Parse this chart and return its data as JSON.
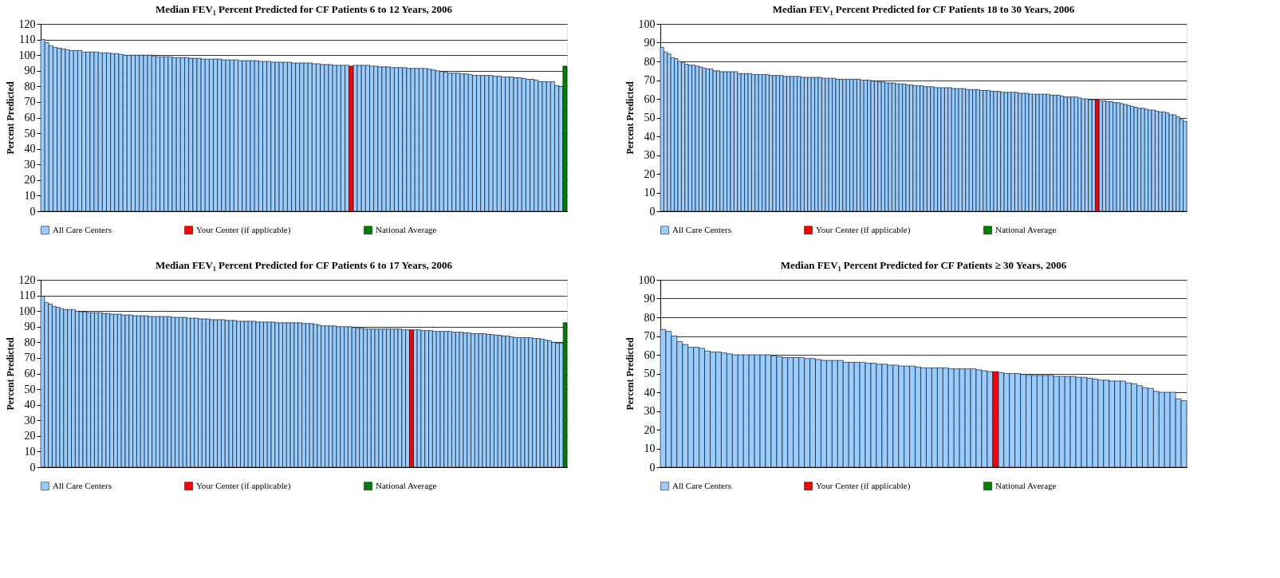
{
  "chart_data": [
    {
      "type": "bar",
      "title": "Median FEV₁ Percent Predicted for CF Patients 6 to 12 Years, 2006",
      "ylabel": "Percent Predicted",
      "ylim": [
        0,
        120
      ],
      "yticks": [
        0,
        10,
        20,
        30,
        40,
        50,
        60,
        70,
        80,
        90,
        100,
        110,
        120
      ],
      "grid": "y",
      "legend": "bottom",
      "tick_labels": "y",
      "categories": [
        null,
        null,
        null,
        null,
        null,
        null,
        null,
        null,
        null,
        null,
        null,
        null,
        null,
        null,
        null,
        null,
        null,
        null,
        null,
        null,
        null,
        null,
        null,
        null,
        null,
        null,
        null,
        null,
        null,
        null,
        null,
        null,
        null,
        null,
        null,
        null,
        null,
        null,
        null,
        null,
        null,
        null,
        null,
        null,
        null,
        null,
        null,
        null,
        null,
        null,
        null,
        null,
        null,
        null,
        null,
        null,
        null,
        null,
        null,
        null,
        null,
        null,
        null,
        null,
        null,
        null,
        null,
        null,
        null,
        null,
        null,
        null,
        null,
        null,
        null,
        null,
        null,
        null,
        null,
        null,
        null,
        null,
        null,
        null,
        null,
        null,
        null,
        null,
        null,
        null,
        null,
        null,
        null,
        null,
        null,
        null,
        null,
        null,
        null,
        null,
        null,
        null,
        null,
        null,
        null,
        null,
        null,
        null,
        null,
        null,
        null,
        null,
        null,
        null,
        null,
        null,
        null,
        null,
        null,
        null,
        null,
        null,
        null,
        null,
        null,
        null,
        null,
        null
      ],
      "series": [
        {
          "name": "All Care Centers",
          "color": "#99ccff",
          "values": [
            110,
            108,
            106,
            105,
            104.5,
            104,
            103.5,
            103,
            103,
            103,
            102,
            102,
            102,
            102,
            101.5,
            101.5,
            101.5,
            101,
            101,
            100.5,
            100,
            100,
            100,
            100,
            100,
            100,
            100,
            99.5,
            99,
            99,
            99,
            99,
            98.5,
            98.5,
            98.5,
            98.5,
            98,
            98,
            98,
            97.5,
            97.5,
            97.5,
            97.5,
            97.5,
            97,
            97,
            97,
            97,
            96.5,
            96.5,
            96.5,
            96.5,
            96.5,
            96,
            96,
            96,
            95.5,
            95.5,
            95.5,
            95.5,
            95.5,
            95,
            95,
            95,
            95,
            95,
            94.5,
            94.5,
            94,
            94,
            94,
            93.5,
            93.5,
            93.5,
            93.5,
            null,
            93.5,
            93.5,
            93.5,
            93.5,
            93,
            93,
            92.5,
            92.5,
            92.5,
            92,
            92,
            92,
            92,
            91.5,
            91.5,
            91.5,
            91.5,
            91.5,
            91,
            90.5,
            90,
            89.5,
            89,
            88.5,
            88.5,
            88.5,
            88,
            88,
            87.5,
            87,
            87,
            87,
            87,
            87,
            86.5,
            86.5,
            86,
            86,
            86,
            85.5,
            85.5,
            85,
            84.5,
            84.5,
            84,
            83,
            83,
            83,
            83,
            80.5,
            80,
            null
          ]
        },
        {
          "name": "Your Center (if applicable)",
          "color": "#ff0000",
          "values": [
            null,
            null,
            null,
            null,
            null,
            null,
            null,
            null,
            null,
            null,
            null,
            null,
            null,
            null,
            null,
            null,
            null,
            null,
            null,
            null,
            null,
            null,
            null,
            null,
            null,
            null,
            null,
            null,
            null,
            null,
            null,
            null,
            null,
            null,
            null,
            null,
            null,
            null,
            null,
            null,
            null,
            null,
            null,
            null,
            null,
            null,
            null,
            null,
            null,
            null,
            null,
            null,
            null,
            null,
            null,
            null,
            null,
            null,
            null,
            null,
            null,
            null,
            null,
            null,
            null,
            null,
            null,
            null,
            null,
            null,
            null,
            null,
            null,
            null,
            null,
            93,
            null,
            null,
            null,
            null,
            null,
            null,
            null,
            null,
            null,
            null,
            null,
            null,
            null,
            null,
            null,
            null,
            null,
            null,
            null,
            null,
            null,
            null,
            null,
            null,
            null,
            null,
            null,
            null,
            null,
            null,
            null,
            null,
            null,
            null,
            null,
            null,
            null,
            null,
            null,
            null,
            null,
            null,
            null,
            null,
            null,
            null,
            null,
            null,
            null,
            null,
            null,
            null
          ]
        },
        {
          "name": "National Average",
          "color": "#008000",
          "values": [
            null,
            null,
            null,
            null,
            null,
            null,
            null,
            null,
            null,
            null,
            null,
            null,
            null,
            null,
            null,
            null,
            null,
            null,
            null,
            null,
            null,
            null,
            null,
            null,
            null,
            null,
            null,
            null,
            null,
            null,
            null,
            null,
            null,
            null,
            null,
            null,
            null,
            null,
            null,
            null,
            null,
            null,
            null,
            null,
            null,
            null,
            null,
            null,
            null,
            null,
            null,
            null,
            null,
            null,
            null,
            null,
            null,
            null,
            null,
            null,
            null,
            null,
            null,
            null,
            null,
            null,
            null,
            null,
            null,
            null,
            null,
            null,
            null,
            null,
            null,
            null,
            null,
            null,
            null,
            null,
            null,
            null,
            null,
            null,
            null,
            null,
            null,
            null,
            null,
            null,
            null,
            null,
            null,
            null,
            null,
            null,
            null,
            null,
            null,
            null,
            null,
            null,
            null,
            null,
            null,
            null,
            null,
            null,
            null,
            null,
            null,
            null,
            null,
            null,
            null,
            null,
            null,
            null,
            null,
            null,
            null,
            null,
            null,
            null,
            null,
            null,
            null,
            93
          ]
        }
      ]
    },
    {
      "type": "bar",
      "title": "Median FEV₁ Percent Predicted for CF Patients 18 to 30 Years, 2006",
      "ylabel": "Percent Predicted",
      "ylim": [
        0,
        100
      ],
      "yticks": [
        0,
        10,
        20,
        30,
        40,
        50,
        60,
        70,
        80,
        90,
        100
      ],
      "grid": "y",
      "legend": "bottom",
      "tick_labels": "y",
      "categories": [
        null,
        null,
        null,
        null,
        null,
        null,
        null,
        null,
        null,
        null,
        null,
        null,
        null,
        null,
        null,
        null,
        null,
        null,
        null,
        null,
        null,
        null,
        null,
        null,
        null,
        null,
        null,
        null,
        null,
        null,
        null,
        null,
        null,
        null,
        null,
        null,
        null,
        null,
        null,
        null,
        null,
        null,
        null,
        null,
        null,
        null,
        null,
        null,
        null,
        null,
        null,
        null,
        null,
        null,
        null,
        null,
        null,
        null,
        null,
        null,
        null,
        null,
        null,
        null,
        null,
        null,
        null,
        null,
        null,
        null,
        null,
        null,
        null,
        null,
        null,
        null,
        null,
        null,
        null,
        null,
        null,
        null,
        null,
        null,
        null,
        null,
        null,
        null,
        null,
        null,
        null,
        null,
        null,
        null,
        null,
        null,
        null,
        null,
        null,
        null,
        null,
        null,
        null,
        null,
        null,
        null,
        null,
        null,
        null,
        null,
        null,
        null,
        null,
        null,
        null,
        null,
        null,
        null,
        null,
        null,
        null,
        null,
        null,
        null,
        null,
        null,
        null,
        null,
        null,
        null,
        null,
        null,
        null,
        null,
        null,
        null,
        null,
        null,
        null,
        null,
        null,
        null,
        null,
        null,
        null,
        null,
        null,
        null,
        null,
        null
      ],
      "series": [
        {
          "name": "All Care Centers",
          "color": "#99ccff",
          "values": [
            87.5,
            85,
            84,
            82,
            81.5,
            80,
            79.5,
            78.5,
            78,
            78,
            77.5,
            77,
            76.5,
            76,
            76,
            75,
            75,
            74.5,
            74.5,
            74.5,
            74.5,
            74.5,
            73.5,
            73.5,
            73.5,
            73.5,
            73,
            73,
            73,
            73,
            73,
            72.5,
            72.5,
            72.5,
            72.5,
            72,
            72,
            72,
            72,
            72,
            71.5,
            71.5,
            71.5,
            71.5,
            71.5,
            71.5,
            71,
            71,
            71,
            71,
            70.5,
            70.5,
            70.5,
            70.5,
            70.5,
            70.5,
            70.5,
            70,
            70,
            70,
            69.5,
            69.5,
            69,
            69,
            68.5,
            68.5,
            68.5,
            68,
            68,
            68,
            67.5,
            67.5,
            67,
            67,
            67,
            66.5,
            66.5,
            66.5,
            66,
            66,
            66,
            66,
            66,
            65.5,
            65.5,
            65.5,
            65.5,
            65,
            65,
            65,
            65,
            64.5,
            64.5,
            64.5,
            64,
            64,
            64,
            63.5,
            63.5,
            63.5,
            63.5,
            63.5,
            63,
            63,
            63,
            62.5,
            62.5,
            62.5,
            62.5,
            62.5,
            62.5,
            62,
            62,
            62,
            61.5,
            61,
            61,
            61,
            61,
            60.5,
            60,
            60,
            59.5,
            59.5,
            null,
            59,
            59,
            58.5,
            58.5,
            58,
            58,
            57.5,
            57,
            56.5,
            56,
            55.5,
            55,
            55,
            54.5,
            54,
            54,
            53.5,
            53,
            53,
            52.5,
            51.5,
            51.5,
            50.5,
            49,
            48
          ]
        },
        {
          "name": "Your Center (if applicable)",
          "color": "#ff0000",
          "values": [
            null,
            null,
            null,
            null,
            null,
            null,
            null,
            null,
            null,
            null,
            null,
            null,
            null,
            null,
            null,
            null,
            null,
            null,
            null,
            null,
            null,
            null,
            null,
            null,
            null,
            null,
            null,
            null,
            null,
            null,
            null,
            null,
            null,
            null,
            null,
            null,
            null,
            null,
            null,
            null,
            null,
            null,
            null,
            null,
            null,
            null,
            null,
            null,
            null,
            null,
            null,
            null,
            null,
            null,
            null,
            null,
            null,
            null,
            null,
            null,
            null,
            null,
            null,
            null,
            null,
            null,
            null,
            null,
            null,
            null,
            null,
            null,
            null,
            null,
            null,
            null,
            null,
            null,
            null,
            null,
            null,
            null,
            null,
            null,
            null,
            null,
            null,
            null,
            null,
            null,
            null,
            null,
            null,
            null,
            null,
            null,
            null,
            null,
            null,
            null,
            null,
            null,
            null,
            null,
            null,
            null,
            null,
            null,
            null,
            null,
            null,
            null,
            null,
            null,
            null,
            null,
            null,
            null,
            null,
            null,
            null,
            null,
            null,
            null,
            59.5,
            null,
            null,
            null,
            null,
            null,
            null,
            null,
            null,
            null,
            null,
            null,
            null,
            null,
            null,
            null,
            null,
            null,
            null,
            null,
            null,
            null,
            null,
            null,
            null,
            null
          ]
        },
        {
          "name": "National Average",
          "color": "#008000",
          "values": [
            null,
            null,
            null,
            null,
            null,
            null,
            null,
            null,
            null,
            null,
            null,
            null,
            null,
            null,
            null,
            null,
            null,
            null,
            null,
            null,
            null,
            null,
            null,
            null,
            null,
            null,
            null,
            null,
            null,
            null,
            null,
            null,
            null,
            null,
            null,
            null,
            null,
            null,
            null,
            null,
            null,
            null,
            null,
            null,
            null,
            null,
            null,
            null,
            null,
            null,
            null,
            null,
            null,
            null,
            null,
            null,
            null,
            null,
            null,
            null,
            null,
            null,
            null,
            null,
            null,
            null,
            null,
            null,
            null,
            null,
            null,
            null,
            null,
            null,
            null,
            null,
            null,
            null,
            null,
            null,
            null,
            null,
            null,
            null,
            null,
            null,
            null,
            null,
            null,
            null,
            null,
            null,
            null,
            null,
            null,
            null,
            null,
            null,
            null,
            null,
            null,
            null,
            null,
            null,
            null,
            null,
            null,
            null,
            null,
            null,
            null,
            null,
            null,
            null,
            null,
            null,
            null,
            null,
            null,
            null,
            null,
            null,
            null,
            null,
            null,
            null,
            null,
            null,
            null,
            null,
            null,
            null,
            null,
            null,
            null,
            null,
            null,
            null,
            null,
            null,
            null,
            null,
            null,
            null,
            null,
            null,
            null,
            null,
            null,
            null
          ]
        }
      ]
    },
    {
      "type": "bar",
      "title": "Median FEV₁ Percent Predicted for CF Patients 6 to 17 Years, 2006",
      "ylabel": "Percent Predicted",
      "ylim": [
        0,
        120
      ],
      "yticks": [
        0,
        10,
        20,
        30,
        40,
        50,
        60,
        70,
        80,
        90,
        100,
        110,
        120
      ],
      "grid": "y",
      "legend": "bottom",
      "tick_labels": "y",
      "categories": [
        null,
        null,
        null,
        null,
        null,
        null,
        null,
        null,
        null,
        null,
        null,
        null,
        null,
        null,
        null,
        null,
        null,
        null,
        null,
        null,
        null,
        null,
        null,
        null,
        null,
        null,
        null,
        null,
        null,
        null,
        null,
        null,
        null,
        null,
        null,
        null,
        null,
        null,
        null,
        null,
        null,
        null,
        null,
        null,
        null,
        null,
        null,
        null,
        null,
        null,
        null,
        null,
        null,
        null,
        null,
        null,
        null,
        null,
        null,
        null,
        null,
        null,
        null,
        null,
        null,
        null,
        null,
        null,
        null,
        null,
        null,
        null,
        null,
        null,
        null,
        null,
        null,
        null,
        null,
        null,
        null,
        null,
        null,
        null,
        null,
        null,
        null,
        null,
        null,
        null,
        null,
        null,
        null,
        null,
        null,
        null,
        null,
        null,
        null,
        null,
        null,
        null,
        null,
        null,
        null,
        null,
        null,
        null,
        null,
        null,
        null,
        null,
        null,
        null,
        null,
        null,
        null,
        null,
        null,
        null,
        null,
        null,
        null,
        null,
        null,
        null,
        null,
        null,
        null,
        null,
        null,
        null,
        null,
        null,
        null,
        null,
        null
      ],
      "series": [
        {
          "name": "All Care Centers",
          "color": "#99ccff",
          "values": [
            109.5,
            105.5,
            104.5,
            103,
            102.5,
            101.5,
            101,
            101,
            101,
            100,
            99.5,
            99.5,
            99,
            99,
            99,
            99,
            98.5,
            98.5,
            98,
            98,
            98,
            97.5,
            97.5,
            97.5,
            97,
            97,
            97,
            97,
            96.5,
            96.5,
            96.5,
            96.5,
            96.5,
            96.5,
            96,
            96,
            96,
            96,
            95.5,
            95.5,
            95.5,
            95,
            95,
            95,
            94.5,
            94.5,
            94.5,
            94.5,
            94,
            94,
            94,
            93.5,
            93.5,
            93.5,
            93.5,
            93.5,
            93,
            93,
            93,
            93,
            93,
            92.5,
            92.5,
            92.5,
            92.5,
            92.5,
            92.5,
            92.5,
            92,
            92,
            92,
            91.5,
            91,
            90.5,
            90.5,
            90.5,
            90.5,
            90,
            90,
            90,
            90,
            89.5,
            89,
            89,
            88.5,
            88.5,
            88.5,
            88.5,
            88.5,
            88.5,
            88.5,
            88.5,
            88.5,
            88.5,
            88,
            88,
            null,
            88,
            88,
            87.5,
            87.5,
            87.5,
            87,
            87,
            87,
            87,
            87,
            86.5,
            86.5,
            86.5,
            86,
            86,
            85.5,
            85.5,
            85.5,
            85.5,
            85,
            85,
            84.5,
            84.5,
            84,
            84,
            83.5,
            83,
            83,
            83,
            83,
            83,
            82.5,
            82.5,
            82,
            81.5,
            81,
            80,
            79.5,
            79.5,
            null
          ]
        },
        {
          "name": "Your Center (if applicable)",
          "color": "#ff0000",
          "values": [
            null,
            null,
            null,
            null,
            null,
            null,
            null,
            null,
            null,
            null,
            null,
            null,
            null,
            null,
            null,
            null,
            null,
            null,
            null,
            null,
            null,
            null,
            null,
            null,
            null,
            null,
            null,
            null,
            null,
            null,
            null,
            null,
            null,
            null,
            null,
            null,
            null,
            null,
            null,
            null,
            null,
            null,
            null,
            null,
            null,
            null,
            null,
            null,
            null,
            null,
            null,
            null,
            null,
            null,
            null,
            null,
            null,
            null,
            null,
            null,
            null,
            null,
            null,
            null,
            null,
            null,
            null,
            null,
            null,
            null,
            null,
            null,
            null,
            null,
            null,
            null,
            null,
            null,
            null,
            null,
            null,
            null,
            null,
            null,
            null,
            null,
            null,
            null,
            null,
            null,
            null,
            null,
            null,
            null,
            null,
            null,
            88,
            null,
            null,
            null,
            null,
            null,
            null,
            null,
            null,
            null,
            null,
            null,
            null,
            null,
            null,
            null,
            null,
            null,
            null,
            null,
            null,
            null,
            null,
            null,
            null,
            null,
            null,
            null,
            null,
            null,
            null,
            null,
            null,
            null,
            null,
            null,
            null,
            null,
            null,
            null,
            null
          ]
        },
        {
          "name": "National Average",
          "color": "#008000",
          "values": [
            null,
            null,
            null,
            null,
            null,
            null,
            null,
            null,
            null,
            null,
            null,
            null,
            null,
            null,
            null,
            null,
            null,
            null,
            null,
            null,
            null,
            null,
            null,
            null,
            null,
            null,
            null,
            null,
            null,
            null,
            null,
            null,
            null,
            null,
            null,
            null,
            null,
            null,
            null,
            null,
            null,
            null,
            null,
            null,
            null,
            null,
            null,
            null,
            null,
            null,
            null,
            null,
            null,
            null,
            null,
            null,
            null,
            null,
            null,
            null,
            null,
            null,
            null,
            null,
            null,
            null,
            null,
            null,
            null,
            null,
            null,
            null,
            null,
            null,
            null,
            null,
            null,
            null,
            null,
            null,
            null,
            null,
            null,
            null,
            null,
            null,
            null,
            null,
            null,
            null,
            null,
            null,
            null,
            null,
            null,
            null,
            null,
            null,
            null,
            null,
            null,
            null,
            null,
            null,
            null,
            null,
            null,
            null,
            null,
            null,
            null,
            null,
            null,
            null,
            null,
            null,
            null,
            null,
            null,
            null,
            null,
            null,
            null,
            null,
            null,
            null,
            null,
            null,
            null,
            null,
            null,
            null,
            null,
            null,
            null,
            null,
            92.5
          ]
        }
      ]
    },
    {
      "type": "bar",
      "title": "Median FEV₁ Percent Predicted for CF Patients ≥ 30 Years, 2006",
      "ylabel": "Percent Predicted",
      "ylim": [
        0,
        100
      ],
      "yticks": [
        0,
        10,
        20,
        30,
        40,
        50,
        60,
        70,
        80,
        90,
        100
      ],
      "grid": "y",
      "legend": "bottom",
      "tick_labels": "y",
      "categories": [
        null,
        null,
        null,
        null,
        null,
        null,
        null,
        null,
        null,
        null,
        null,
        null,
        null,
        null,
        null,
        null,
        null,
        null,
        null,
        null,
        null,
        null,
        null,
        null,
        null,
        null,
        null,
        null,
        null,
        null,
        null,
        null,
        null,
        null,
        null,
        null,
        null,
        null,
        null,
        null,
        null,
        null,
        null,
        null,
        null,
        null,
        null,
        null,
        null,
        null,
        null,
        null,
        null,
        null,
        null,
        null,
        null,
        null,
        null,
        null,
        null,
        null,
        null,
        null,
        null,
        null,
        null,
        null,
        null,
        null,
        null,
        null,
        null,
        null,
        null,
        null,
        null,
        null,
        null,
        null,
        null,
        null,
        null,
        null,
        null,
        null,
        null,
        null,
        null,
        null,
        null,
        null,
        null,
        null,
        null
      ],
      "series": [
        {
          "name": "All Care Centers",
          "color": "#99ccff",
          "values": [
            73.5,
            72.5,
            70,
            67,
            65.5,
            64,
            64,
            63.5,
            62,
            61.5,
            61.5,
            61,
            60.5,
            60,
            60,
            60,
            60,
            60,
            60,
            60,
            59.5,
            59,
            58.5,
            58.5,
            58.5,
            58.5,
            58,
            58,
            57.5,
            57,
            57,
            57,
            57,
            56,
            56,
            56,
            56,
            55.5,
            55.5,
            55,
            55,
            54.5,
            54.5,
            54,
            54,
            54,
            53.5,
            53,
            53,
            53,
            53,
            53,
            52.5,
            52.5,
            52.5,
            52.5,
            52.5,
            52,
            51.5,
            51,
            null,
            50.5,
            50,
            50,
            50,
            49.5,
            49,
            49,
            49,
            49,
            49,
            48.5,
            48.5,
            48.5,
            48.5,
            48,
            48,
            47.5,
            47,
            46.5,
            46.5,
            46,
            46,
            46,
            45,
            44.5,
            43.5,
            42.5,
            42,
            40.5,
            40,
            40,
            40,
            36.5,
            35.5
          ]
        },
        {
          "name": "Your Center (if applicable)",
          "color": "#ff0000",
          "values": [
            null,
            null,
            null,
            null,
            null,
            null,
            null,
            null,
            null,
            null,
            null,
            null,
            null,
            null,
            null,
            null,
            null,
            null,
            null,
            null,
            null,
            null,
            null,
            null,
            null,
            null,
            null,
            null,
            null,
            null,
            null,
            null,
            null,
            null,
            null,
            null,
            null,
            null,
            null,
            null,
            null,
            null,
            null,
            null,
            null,
            null,
            null,
            null,
            null,
            null,
            null,
            null,
            null,
            null,
            null,
            null,
            null,
            null,
            null,
            null,
            51,
            null,
            null,
            null,
            null,
            null,
            null,
            null,
            null,
            null,
            null,
            null,
            null,
            null,
            null,
            null,
            null,
            null,
            null,
            null,
            null,
            null,
            null,
            null,
            null,
            null,
            null,
            null,
            null,
            null,
            null,
            null,
            null,
            null,
            null
          ]
        },
        {
          "name": "National Average",
          "color": "#008000",
          "values": [
            null,
            null,
            null,
            null,
            null,
            null,
            null,
            null,
            null,
            null,
            null,
            null,
            null,
            null,
            null,
            null,
            null,
            null,
            null,
            null,
            null,
            null,
            null,
            null,
            null,
            null,
            null,
            null,
            null,
            null,
            null,
            null,
            null,
            null,
            null,
            null,
            null,
            null,
            null,
            null,
            null,
            null,
            null,
            null,
            null,
            null,
            null,
            null,
            null,
            null,
            null,
            null,
            null,
            null,
            null,
            null,
            null,
            null,
            null,
            null,
            null,
            null,
            null,
            null,
            null,
            null,
            null,
            null,
            null,
            null,
            null,
            null,
            null,
            null,
            null,
            null,
            null,
            null,
            null,
            null,
            null,
            null,
            null,
            null,
            null,
            null,
            null,
            null,
            null,
            null,
            null,
            null,
            null,
            null,
            null
          ]
        }
      ]
    }
  ]
}
